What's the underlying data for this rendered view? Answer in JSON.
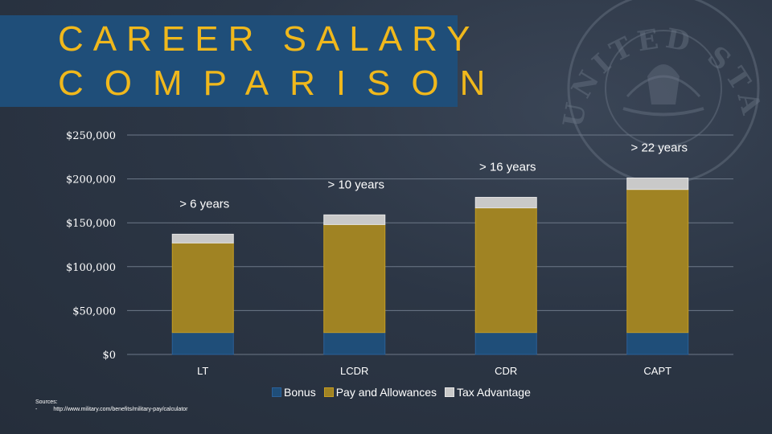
{
  "slide": {
    "title_line1": "CAREER SALARY",
    "title_line2": "COMPARISON",
    "sources_label": "Sources:",
    "sources_bullet": "-",
    "sources_url": "http://www.military.com/benefits/military-pay/calculator"
  },
  "seal": {
    "ring_text": "UNITED STATES NAVY"
  },
  "colors": {
    "bonus": "#1f4e79",
    "pay": "#a08323",
    "tax": "#c9c9c9",
    "title_text": "#f0b81c",
    "title_box": "#1f4e79"
  },
  "chart_data": {
    "type": "bar",
    "stacked": true,
    "categories": [
      "LT",
      "LCDR",
      "CDR",
      "CAPT"
    ],
    "series": [
      {
        "name": "Bonus",
        "color": "#1f4e79",
        "values": [
          25000,
          25000,
          25000,
          25000
        ]
      },
      {
        "name": "Pay and Allowances",
        "color": "#a08323",
        "values": [
          102000,
          123000,
          142000,
          163000
        ]
      },
      {
        "name": "Tax Advantage",
        "color": "#c9c9c9",
        "values": [
          10000,
          11000,
          12000,
          13000
        ]
      }
    ],
    "annotations": [
      "> 6 years",
      "> 10 years",
      "> 16 years",
      "> 22 years"
    ],
    "yticks": [
      0,
      50000,
      100000,
      150000,
      200000,
      250000
    ],
    "ytick_labels": [
      "$0",
      "$50,000",
      "$100,000",
      "$150,000",
      "$200,000",
      "$250,000"
    ],
    "ylim": [
      0,
      250000
    ],
    "grid": true,
    "legend": "bottom",
    "title": "",
    "xlabel": "",
    "ylabel": ""
  }
}
